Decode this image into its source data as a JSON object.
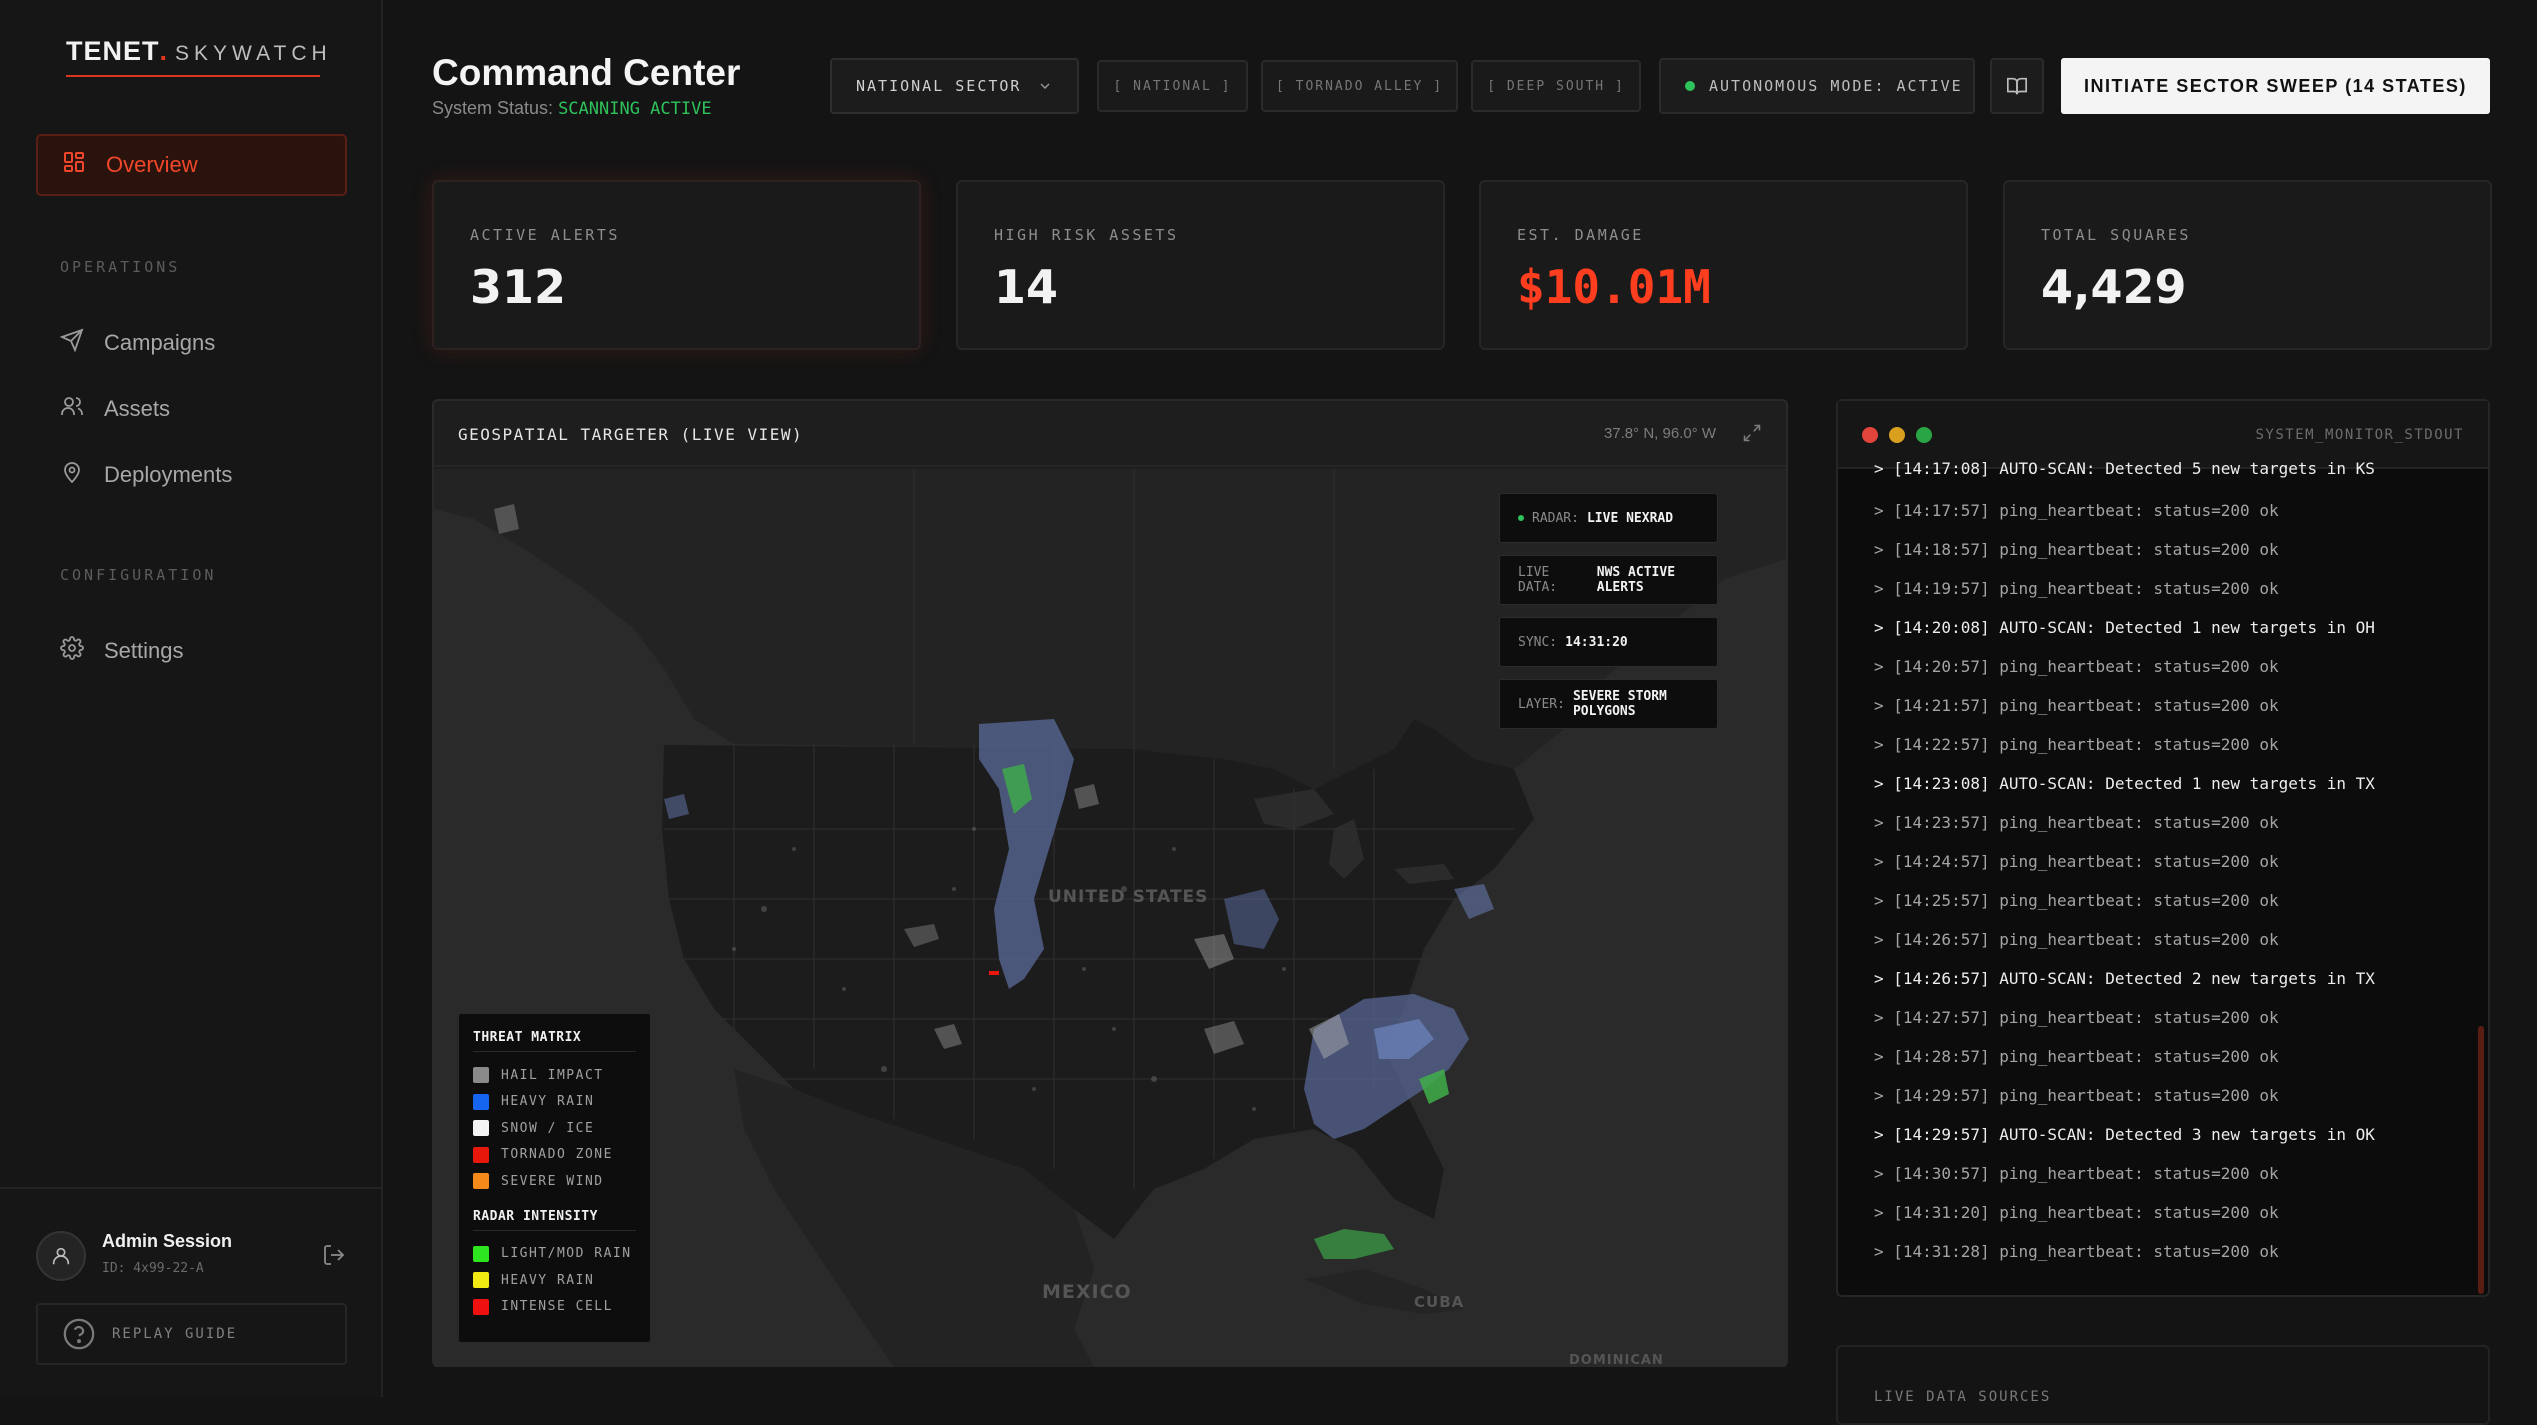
{
  "brand": {
    "name": "TENET",
    "dot": ".",
    "product": "SKYWATCH"
  },
  "sidebar": {
    "active": {
      "label": "Overview",
      "icon": "grid-icon"
    },
    "sections": [
      {
        "title": "OPERATIONS",
        "items": [
          {
            "label": "Campaigns",
            "icon": "send-icon"
          },
          {
            "label": "Assets",
            "icon": "users-icon"
          },
          {
            "label": "Deployments",
            "icon": "map-pin-icon"
          }
        ]
      },
      {
        "title": "CONFIGURATION",
        "items": [
          {
            "label": "Settings",
            "icon": "gear-icon"
          }
        ]
      }
    ],
    "footer": {
      "name": "Admin Session",
      "id": "ID: 4x99-22-A",
      "replay": "REPLAY GUIDE"
    }
  },
  "header": {
    "title": "Command Center",
    "status_label": "System Status:",
    "status_value": "SCANNING ACTIVE",
    "sector": "NATIONAL SECTOR",
    "pills": [
      "[ NATIONAL ]",
      "[ TORNADO ALLEY ]",
      "[ DEEP SOUTH ]"
    ],
    "autonomous": "AUTONOMOUS MODE: ACTIVE",
    "sweep": "INITIATE SECTOR SWEEP (14 STATES)"
  },
  "stats": [
    {
      "label": "ACTIVE ALERTS",
      "value": "312"
    },
    {
      "label": "HIGH RISK ASSETS",
      "value": "14"
    },
    {
      "label": "EST. DAMAGE",
      "value": "$10.01M"
    },
    {
      "label": "TOTAL SQUARES",
      "value": "4,429"
    }
  ],
  "map": {
    "title": "GEOSPATIAL TARGETER (LIVE VIEW)",
    "coords": "37.8° N, 96.0° W",
    "overlays": [
      {
        "k": "RADAR:",
        "v": "LIVE NEXRAD"
      },
      {
        "k": "LIVE DATA:",
        "v": "NWS ACTIVE ALERTS"
      },
      {
        "k": "SYNC:",
        "v": "14:31:20"
      },
      {
        "k": "LAYER:",
        "v": "SEVERE STORM POLYGONS"
      }
    ],
    "labels": {
      "us": "UNITED STATES",
      "mexico": "MEXICO",
      "cuba": "CUBA",
      "dominican": "DOMINICAN"
    },
    "legend": {
      "threat_title": "THREAT MATRIX",
      "threat": [
        {
          "label": "HAIL IMPACT",
          "color": "#8a8a8a"
        },
        {
          "label": "HEAVY RAIN",
          "color": "#1565f0"
        },
        {
          "label": "SNOW / ICE",
          "color": "#f4f4f4"
        },
        {
          "label": "TORNADO ZONE",
          "color": "#e8170c"
        },
        {
          "label": "SEVERE WIND",
          "color": "#f5891a"
        }
      ],
      "radar_title": "RADAR INTENSITY",
      "radar": [
        {
          "label": "LIGHT/MOD RAIN",
          "color": "#2de61f"
        },
        {
          "label": "HEAVY RAIN",
          "color": "#f0ea12"
        },
        {
          "label": "INTENSE CELL",
          "color": "#ef1010"
        }
      ]
    }
  },
  "terminal": {
    "title": "SYSTEM_MONITOR_STDOUT",
    "partial": "> [14:17:08] AUTO-SCAN: Detected 5 new targets in KS",
    "lines": [
      {
        "text": "> [14:17:57] ping_heartbeat: status=200 ok",
        "kind": "ok"
      },
      {
        "text": "> [14:18:57] ping_heartbeat: status=200 ok",
        "kind": "ok"
      },
      {
        "text": "> [14:19:57] ping_heartbeat: status=200 ok",
        "kind": "ok"
      },
      {
        "text": "> [14:20:08] AUTO-SCAN: Detected 1 new targets in OH",
        "kind": "hit"
      },
      {
        "text": "> [14:20:57] ping_heartbeat: status=200 ok",
        "kind": "ok"
      },
      {
        "text": "> [14:21:57] ping_heartbeat: status=200 ok",
        "kind": "ok"
      },
      {
        "text": "> [14:22:57] ping_heartbeat: status=200 ok",
        "kind": "ok"
      },
      {
        "text": "> [14:23:08] AUTO-SCAN: Detected 1 new targets in TX",
        "kind": "hit"
      },
      {
        "text": "> [14:23:57] ping_heartbeat: status=200 ok",
        "kind": "ok"
      },
      {
        "text": "> [14:24:57] ping_heartbeat: status=200 ok",
        "kind": "ok"
      },
      {
        "text": "> [14:25:57] ping_heartbeat: status=200 ok",
        "kind": "ok"
      },
      {
        "text": "> [14:26:57] ping_heartbeat: status=200 ok",
        "kind": "ok"
      },
      {
        "text": "> [14:26:57] AUTO-SCAN: Detected 2 new targets in TX",
        "kind": "hit"
      },
      {
        "text": "> [14:27:57] ping_heartbeat: status=200 ok",
        "kind": "ok"
      },
      {
        "text": "> [14:28:57] ping_heartbeat: status=200 ok",
        "kind": "ok"
      },
      {
        "text": "> [14:29:57] ping_heartbeat: status=200 ok",
        "kind": "ok"
      },
      {
        "text": "> [14:29:57] AUTO-SCAN: Detected 3 new targets in OK",
        "kind": "hit"
      },
      {
        "text": "> [14:30:57] ping_heartbeat: status=200 ok",
        "kind": "ok"
      },
      {
        "text": "> [14:31:20] ping_heartbeat: status=200 ok",
        "kind": "ok"
      },
      {
        "text": "> [14:31:28] ping_heartbeat: status=200 ok",
        "kind": "ok"
      }
    ]
  },
  "live_panel": {
    "title": "LIVE DATA SOURCES"
  },
  "colors": {
    "accent": "#e33a1f",
    "active_green": "#2ec25a",
    "damage_red": "#ff3d1f"
  }
}
